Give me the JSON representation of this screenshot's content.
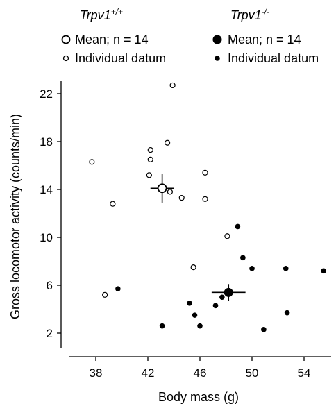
{
  "chart_data": {
    "type": "scatter",
    "xlabel": "Body mass (g)",
    "ylabel": "Gross locomotor activity (counts/min)",
    "xlim": [
      36,
      56
    ],
    "ylim": [
      1,
      24
    ],
    "xticks": [
      "38",
      "42",
      "46",
      "50",
      "54"
    ],
    "yticks": [
      "2",
      "6",
      "10",
      "14",
      "18",
      "22"
    ],
    "x_tick_values": [
      38,
      42,
      46,
      50,
      54
    ],
    "y_tick_values": [
      2,
      6,
      10,
      14,
      18,
      22
    ],
    "legend_position": "top",
    "groups": [
      {
        "genotype_base": "Trpv1",
        "genotype_sup": "+/+",
        "marker": "open",
        "mean_label": "Mean; n = 14",
        "individual_label": "Individual datum",
        "mean": {
          "x": 43.1,
          "y": 14.1,
          "x_err": 0.9,
          "y_err": 1.2
        },
        "points": [
          {
            "x": 37.7,
            "y": 16.3
          },
          {
            "x": 39.3,
            "y": 12.8
          },
          {
            "x": 38.7,
            "y": 5.2
          },
          {
            "x": 42.2,
            "y": 17.3
          },
          {
            "x": 42.2,
            "y": 16.5
          },
          {
            "x": 42.1,
            "y": 15.2
          },
          {
            "x": 43.5,
            "y": 17.9
          },
          {
            "x": 43.7,
            "y": 13.8
          },
          {
            "x": 44.6,
            "y": 13.3
          },
          {
            "x": 43.9,
            "y": 22.7
          },
          {
            "x": 46.4,
            "y": 15.4
          },
          {
            "x": 46.4,
            "y": 13.2
          },
          {
            "x": 48.1,
            "y": 10.1
          },
          {
            "x": 45.5,
            "y": 7.5
          }
        ]
      },
      {
        "genotype_base": "Trpv1",
        "genotype_sup": "-/-",
        "marker": "filled",
        "mean_label": "Mean; n = 14",
        "individual_label": "Individual datum",
        "mean": {
          "x": 48.2,
          "y": 5.4,
          "x_err": 1.3,
          "y_err": 0.7
        },
        "points": [
          {
            "x": 39.7,
            "y": 5.7
          },
          {
            "x": 43.1,
            "y": 2.6
          },
          {
            "x": 45.2,
            "y": 4.5
          },
          {
            "x": 45.6,
            "y": 3.5
          },
          {
            "x": 46.0,
            "y": 2.6
          },
          {
            "x": 47.2,
            "y": 4.3
          },
          {
            "x": 47.7,
            "y": 5.0
          },
          {
            "x": 48.9,
            "y": 10.9
          },
          {
            "x": 49.3,
            "y": 8.3
          },
          {
            "x": 50.0,
            "y": 7.4
          },
          {
            "x": 50.9,
            "y": 2.3
          },
          {
            "x": 52.6,
            "y": 7.4
          },
          {
            "x": 52.7,
            "y": 3.7
          },
          {
            "x": 55.5,
            "y": 7.2
          }
        ]
      }
    ]
  }
}
